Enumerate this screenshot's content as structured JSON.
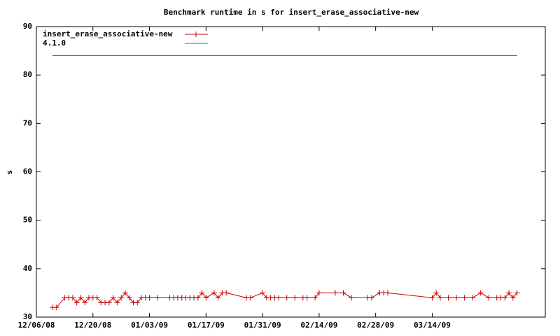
{
  "chart_data": {
    "type": "line",
    "title": "Benchmark runtime in s for insert_erase_associative-new",
    "y_label": "s",
    "xlim": [
      "2008-12-06",
      "2009-04-11"
    ],
    "xticks": [
      {
        "value": "2008-12-06",
        "label": "12/06/08"
      },
      {
        "value": "2008-12-20",
        "label": "12/20/08"
      },
      {
        "value": "2009-01-03",
        "label": "01/03/09"
      },
      {
        "value": "2009-01-17",
        "label": "01/17/09"
      },
      {
        "value": "2009-01-31",
        "label": "01/31/09"
      },
      {
        "value": "2009-02-14",
        "label": "02/14/09"
      },
      {
        "value": "2009-02-28",
        "label": "02/28/09"
      },
      {
        "value": "2009-03-14",
        "label": "03/14/09"
      }
    ],
    "ylim": [
      30,
      90
    ],
    "yticks": [
      30,
      40,
      50,
      60,
      70,
      80,
      90
    ],
    "legend": "top-left",
    "series": [
      {
        "name": "insert_erase_associative-new",
        "color": "#cc0000",
        "markers": true,
        "x": [
          "2008-12-10",
          "2008-12-11",
          "2008-12-13",
          "2008-12-14",
          "2008-12-15",
          "2008-12-16",
          "2008-12-17",
          "2008-12-18",
          "2008-12-19",
          "2008-12-20",
          "2008-12-21",
          "2008-12-22",
          "2008-12-23",
          "2008-12-24",
          "2008-12-25",
          "2008-12-26",
          "2008-12-27",
          "2008-12-28",
          "2008-12-29",
          "2008-12-30",
          "2008-12-31",
          "2009-01-01",
          "2009-01-02",
          "2009-01-03",
          "2009-01-05",
          "2009-01-08",
          "2009-01-09",
          "2009-01-10",
          "2009-01-11",
          "2009-01-12",
          "2009-01-13",
          "2009-01-14",
          "2009-01-15",
          "2009-01-16",
          "2009-01-17",
          "2009-01-19",
          "2009-01-20",
          "2009-01-21",
          "2009-01-22",
          "2009-01-27",
          "2009-01-28",
          "2009-01-31",
          "2009-02-01",
          "2009-02-02",
          "2009-02-03",
          "2009-02-04",
          "2009-02-06",
          "2009-02-08",
          "2009-02-10",
          "2009-02-11",
          "2009-02-13",
          "2009-02-14",
          "2009-02-18",
          "2009-02-20",
          "2009-02-22",
          "2009-02-26",
          "2009-02-27",
          "2009-03-01",
          "2009-03-02",
          "2009-03-03",
          "2009-03-14",
          "2009-03-15",
          "2009-03-16",
          "2009-03-18",
          "2009-03-20",
          "2009-03-22",
          "2009-03-24",
          "2009-03-26",
          "2009-03-28",
          "2009-03-30",
          "2009-03-31",
          "2009-04-01",
          "2009-04-02",
          "2009-04-03",
          "2009-04-04"
        ],
        "values": [
          32,
          32,
          34,
          34,
          34,
          33,
          34,
          33,
          34,
          34,
          34,
          33,
          33,
          33,
          34,
          33,
          34,
          35,
          34,
          33,
          33,
          34,
          34,
          34,
          34,
          34,
          34,
          34,
          34,
          34,
          34,
          34,
          34,
          35,
          34,
          35,
          34,
          35,
          35,
          34,
          34,
          35,
          34,
          34,
          34,
          34,
          34,
          34,
          34,
          34,
          34,
          35,
          35,
          35,
          34,
          34,
          34,
          35,
          35,
          35,
          34,
          35,
          34,
          34,
          34,
          34,
          34,
          35,
          34,
          34,
          34,
          34,
          35,
          34,
          35
        ]
      },
      {
        "name": "4.1.0",
        "color": "#00a000",
        "markers": false,
        "x": [
          "2008-12-10",
          "2009-04-04"
        ],
        "values": [
          84,
          84
        ]
      }
    ]
  }
}
